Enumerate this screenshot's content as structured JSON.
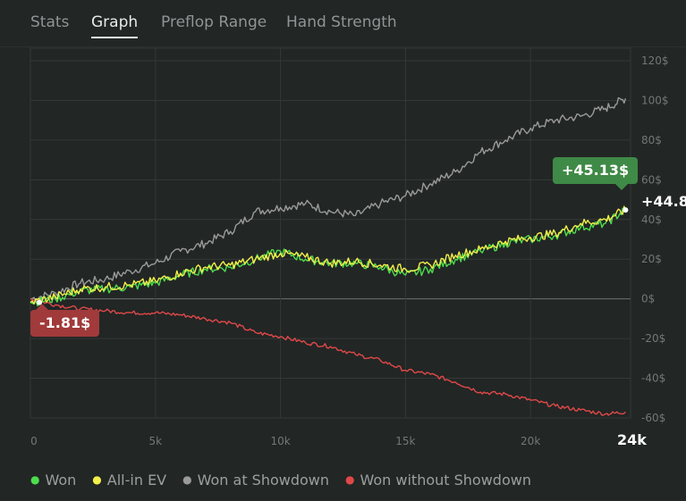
{
  "tabs": [
    {
      "label": "Stats",
      "active": false
    },
    {
      "label": "Graph",
      "active": true
    },
    {
      "label": "Preflop Range",
      "active": false
    },
    {
      "label": "Hand Strength",
      "active": false
    }
  ],
  "colors": {
    "won": "#4ddc4d",
    "allin_ev": "#f2ef4a",
    "showdown": "#9a9a9a",
    "non_showdown": "#e04848",
    "grid": "#343837",
    "axis_text": "#727877",
    "zero_line": "#6b706f"
  },
  "callouts": {
    "end_value": "+45.13$",
    "start_value": "-1.81$",
    "end_side_label": "+44.8",
    "x_max_label": "24k"
  },
  "chart_data": {
    "type": "line",
    "title": "",
    "xlabel": "",
    "ylabel": "",
    "x_ticks": [
      "0",
      "5k",
      "10k",
      "15k",
      "20k"
    ],
    "y_ticks": [
      "120$",
      "100$",
      "80$",
      "60$",
      "40$",
      "20$",
      "0$",
      "-20$",
      "-40$",
      "-60$"
    ],
    "xlim": [
      0,
      24000
    ],
    "ylim": [
      -60,
      120
    ],
    "grid": true,
    "legend_position": "bottom-left",
    "series": [
      {
        "name": "Won",
        "color_key": "won",
        "x": [
          0,
          1000,
          2000,
          3000,
          4000,
          5000,
          6000,
          7000,
          8000,
          9000,
          10000,
          11000,
          12000,
          13000,
          14000,
          15000,
          16000,
          17000,
          18000,
          19000,
          20000,
          21000,
          22000,
          23000,
          23800
        ],
        "y": [
          -1.8,
          0,
          4,
          5,
          6,
          8,
          12,
          15,
          16,
          20,
          24,
          20,
          18,
          18,
          16,
          12,
          15,
          20,
          24,
          28,
          30,
          32,
          36,
          38,
          45
        ]
      },
      {
        "name": "All-in EV",
        "color_key": "allin_ev",
        "x": [
          0,
          1000,
          2000,
          3000,
          4000,
          5000,
          6000,
          7000,
          8000,
          9000,
          10000,
          11000,
          12000,
          13000,
          14000,
          15000,
          16000,
          17000,
          18000,
          19000,
          20000,
          21000,
          22000,
          23000,
          23800
        ],
        "y": [
          -1.8,
          1,
          5,
          6,
          7,
          9,
          13,
          16,
          17,
          20,
          23,
          21,
          18,
          19,
          17,
          15,
          17,
          22,
          25,
          29,
          31,
          33,
          38,
          40,
          44.8
        ]
      },
      {
        "name": "Won at Showdown",
        "color_key": "showdown",
        "x": [
          0,
          1000,
          2000,
          3000,
          4000,
          5000,
          6000,
          7000,
          8000,
          9000,
          10000,
          11000,
          12000,
          13000,
          14000,
          15000,
          16000,
          17000,
          18000,
          19000,
          20000,
          21000,
          22000,
          23000,
          23800
        ],
        "y": [
          0,
          3,
          8,
          10,
          14,
          18,
          24,
          28,
          34,
          44,
          46,
          48,
          44,
          42,
          48,
          52,
          58,
          64,
          74,
          80,
          86,
          90,
          92,
          96,
          101
        ]
      },
      {
        "name": "Won without Showdown",
        "color_key": "non_showdown",
        "x": [
          0,
          1000,
          2000,
          3000,
          4000,
          5000,
          6000,
          7000,
          8000,
          9000,
          10000,
          11000,
          12000,
          13000,
          14000,
          15000,
          16000,
          17000,
          18000,
          19000,
          20000,
          21000,
          22000,
          23000,
          23800
        ],
        "y": [
          0,
          -3,
          -5,
          -6,
          -7,
          -7,
          -8,
          -10,
          -12,
          -17,
          -19,
          -22,
          -24,
          -28,
          -31,
          -36,
          -38,
          -42,
          -47,
          -48,
          -51,
          -54,
          -56,
          -58,
          -57
        ]
      }
    ]
  }
}
